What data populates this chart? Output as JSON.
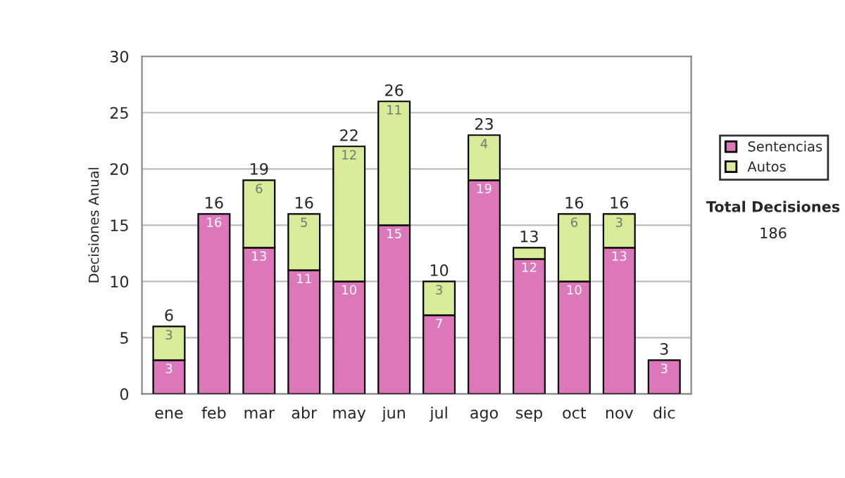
{
  "chart_data": {
    "type": "bar",
    "stacked": true,
    "ylabel": "Decisiones Anual",
    "categories": [
      "ene",
      "feb",
      "mar",
      "abr",
      "may",
      "jun",
      "jul",
      "ago",
      "sep",
      "oct",
      "nov",
      "dic"
    ],
    "series": [
      {
        "name": "Sentencias",
        "color": "#dd77bb",
        "values": [
          3,
          16,
          13,
          11,
          10,
          15,
          7,
          19,
          12,
          10,
          13,
          3
        ],
        "value_labels": [
          "3",
          "16",
          "13",
          "11",
          "10",
          "15",
          "7",
          "19",
          "12",
          "10",
          "13",
          "3"
        ]
      },
      {
        "name": "Autos",
        "color": "#d8eb99",
        "values": [
          3,
          null,
          6,
          5,
          12,
          11,
          3,
          4,
          1,
          6,
          3,
          null
        ],
        "value_labels": [
          "3",
          null,
          "6",
          "5",
          "12",
          "11",
          "3",
          "4",
          null,
          "6",
          "3",
          null
        ]
      }
    ],
    "totals": [
      "6",
      "16",
      "19",
      "16",
      "22",
      "26",
      "10",
      "23",
      "13",
      "16",
      "16",
      "3"
    ],
    "ylim": [
      0,
      30
    ],
    "yticks": [
      0,
      5,
      10,
      15,
      20,
      25,
      30
    ],
    "grid": "y",
    "legend": "right",
    "annotations": [
      "Total Decisiones",
      "186"
    ]
  }
}
